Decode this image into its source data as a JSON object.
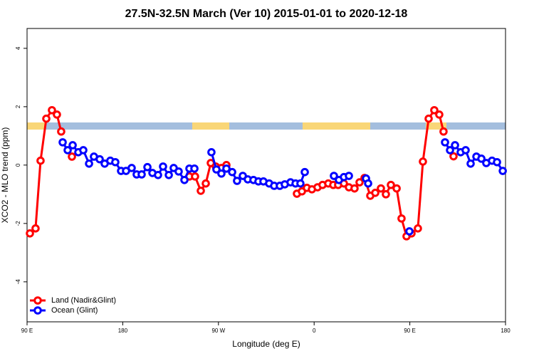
{
  "chart_data": {
    "type": "line",
    "title": "27.5N-32.5N March (Ver 10)   2015-01-01 to 2020-12-18",
    "x_label": "Longitude (deg E)",
    "y_label": "XCO2 - MLO trend (ppm)",
    "xlim": [
      90,
      540
    ],
    "ylim": [
      -5.37,
      4.68
    ],
    "xticks": [
      {
        "value": 90,
        "label": "90 E"
      },
      180,
      {
        "value": 270,
        "label": "90 W"
      },
      {
        "value": 360,
        "label": "0"
      },
      {
        "value": 450,
        "label": "90 E"
      },
      {
        "value": 540,
        "label": "180"
      }
    ],
    "yticks": [
      -4,
      -2,
      0,
      2,
      4
    ],
    "legend": "bottom-left",
    "series": [
      {
        "name": "Land (Nadir&Glint)",
        "color": "#ff0000",
        "x": [
          92.7,
          98.0,
          102.7,
          108.1,
          113.4,
          118.1,
          122.1,
          127,
          132.2,
          237,
          242.7,
          248.0,
          253.4,
          258.1,
          262.8,
          267.5,
          272.8,
          277.5,
          340,
          343.8,
          348.5,
          353.2,
          357.9,
          363.2,
          367.9,
          373.3,
          378.0,
          382.6,
          388.0,
          392.7,
          398.0,
          402.7,
          407.4,
          412.8,
          417.5,
          422.8,
          427.5,
          432.2,
          437.6,
          442.2,
          446.9,
          451.6,
          457.6,
          462.3,
          467.7,
          473.0,
          477.7,
          481.7,
          486,
          491.1
        ],
        "values": [
          -2.34,
          -2.17,
          0.15,
          1.59,
          1.88,
          1.73,
          1.15,
          null,
          0.29,
          null,
          -0.39,
          -0.39,
          -0.88,
          -0.63,
          0.07,
          -0.05,
          -0.1,
          0,
          null,
          -0.98,
          -0.9,
          -0.78,
          -0.83,
          -0.76,
          -0.68,
          -0.63,
          -0.68,
          -0.68,
          -0.63,
          -0.76,
          -0.8,
          -0.59,
          -0.44,
          -1.05,
          -0.95,
          -0.8,
          -1.0,
          -0.68,
          -0.8,
          -1.83,
          -2.44,
          -2.34,
          -2.17,
          0.12,
          1.59,
          1.88,
          1.73,
          1.15,
          null,
          0.3
        ]
      },
      {
        "name": "Ocean (Glint)",
        "color": "#0000ff",
        "x": [
          123.5,
          128.2,
          132.9,
          138.2,
          142.9,
          148.3,
          152.9,
          158.3,
          163.0,
          168.3,
          173.0,
          178.4,
          183.1,
          188.4,
          193.1,
          197.8,
          203.2,
          207.9,
          213.2,
          217.9,
          223.3,
          227.9,
          232.6,
          238.0,
          242.7,
          247.4,
          255,
          263.4,
          268.1,
          272.8,
          277.5,
          282.9,
          287.5,
          292.9,
          297.6,
          302.9,
          307.6,
          312.3,
          317.7,
          322.4,
          327.7,
          332.4,
          337.8,
          342.5,
          347.1,
          351.2,
          365,
          378.6,
          383.3,
          388.0,
          392.7,
          400,
          408.8,
          410.8,
          430,
          449.6,
          470,
          483.1,
          487.8,
          492.5,
          497.8,
          502.5,
          507.2,
          512.6,
          517.3,
          521.9,
          527.3,
          532.0,
          537.4
        ],
        "values": [
          0.78,
          0.51,
          0.68,
          0.44,
          0.51,
          0.05,
          0.29,
          0.2,
          0.05,
          0.15,
          0.1,
          -0.2,
          -0.2,
          -0.1,
          -0.32,
          -0.32,
          -0.07,
          -0.27,
          -0.34,
          -0.05,
          -0.34,
          -0.1,
          -0.22,
          -0.51,
          -0.12,
          -0.12,
          null,
          0.44,
          -0.15,
          -0.29,
          -0.12,
          -0.24,
          -0.54,
          -0.37,
          -0.49,
          -0.51,
          -0.56,
          -0.56,
          -0.63,
          -0.71,
          -0.71,
          -0.66,
          -0.59,
          -0.63,
          -0.63,
          -0.24,
          null,
          -0.37,
          -0.51,
          -0.41,
          -0.37,
          null,
          -0.46,
          -0.63,
          null,
          -2.27,
          null,
          0.78,
          0.51,
          0.68,
          0.44,
          0.51,
          0.05,
          0.29,
          0.22,
          0.07,
          0.15,
          0.1,
          -0.2
        ]
      }
    ]
  }
}
